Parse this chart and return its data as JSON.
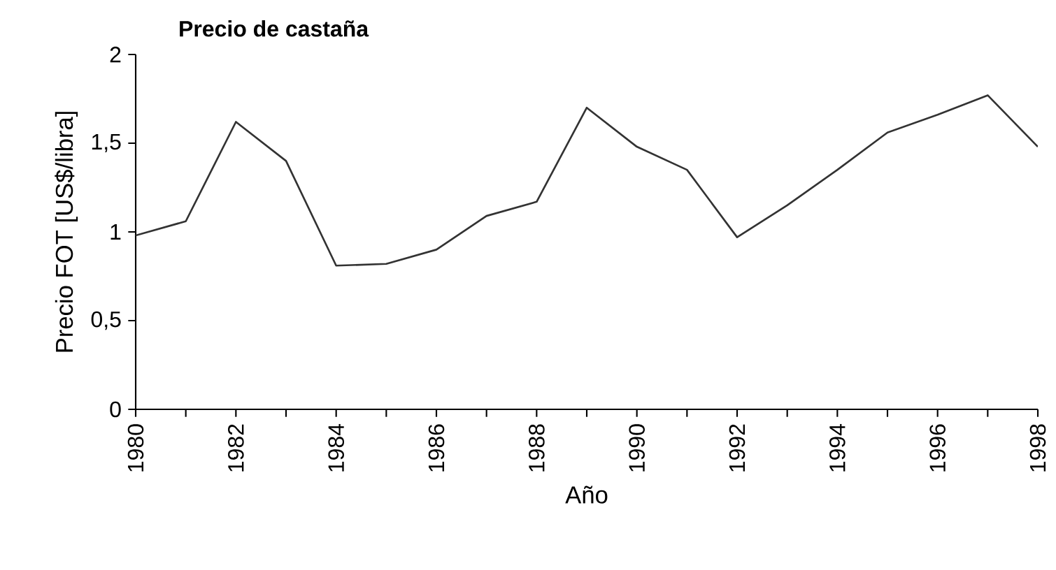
{
  "chart_data": {
    "type": "line",
    "title": "Precio de castaña",
    "xlabel": "Año",
    "ylabel": "Precio FOT [US$/libra]",
    "x": [
      1980,
      1981,
      1982,
      1983,
      1984,
      1985,
      1986,
      1987,
      1988,
      1989,
      1990,
      1991,
      1992,
      1993,
      1994,
      1995,
      1996,
      1997,
      1998
    ],
    "series": [
      {
        "color": "#333333",
        "values": [
          0.98,
          1.06,
          1.62,
          1.4,
          0.81,
          0.82,
          0.9,
          1.09,
          1.17,
          1.7,
          1.48,
          1.35,
          0.97,
          1.15,
          1.35,
          1.56,
          1.66,
          1.77,
          1.48
        ]
      }
    ],
    "xlim": [
      1980,
      1998
    ],
    "xticks": [
      1980,
      {
        "value": 1981,
        "label": null
      },
      1982,
      {
        "value": 1983,
        "label": null
      },
      1984,
      {
        "value": 1985,
        "label": null
      },
      1986,
      {
        "value": 1987,
        "label": null
      },
      1988,
      {
        "value": 1989,
        "label": null
      },
      1990,
      {
        "value": 1991,
        "label": null
      },
      1992,
      {
        "value": 1993,
        "label": null
      },
      1994,
      {
        "value": 1995,
        "label": null
      },
      1996,
      {
        "value": 1997,
        "label": null
      },
      1998
    ],
    "ylim": [
      0,
      2
    ],
    "yticks": [
      0,
      {
        "value": 0.5,
        "label": "0,5"
      },
      1,
      {
        "value": 1.5,
        "label": "1,5"
      },
      2
    ],
    "grid": false,
    "marker": "none",
    "line_style": "solid"
  }
}
